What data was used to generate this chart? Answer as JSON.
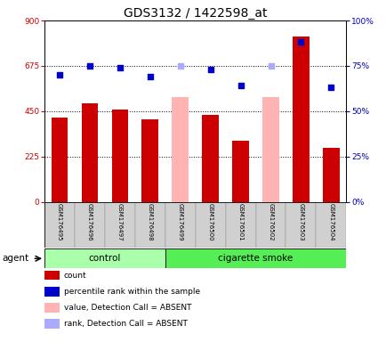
{
  "title": "GDS3132 / 1422598_at",
  "samples": [
    "GSM176495",
    "GSM176496",
    "GSM176497",
    "GSM176498",
    "GSM176499",
    "GSM176500",
    "GSM176501",
    "GSM176502",
    "GSM176503",
    "GSM176504"
  ],
  "count_present": [
    420,
    490,
    460,
    410,
    null,
    430,
    305,
    null,
    820,
    270
  ],
  "count_absent": [
    null,
    null,
    null,
    null,
    520,
    null,
    null,
    520,
    null,
    null
  ],
  "rank_present_pct": [
    70,
    75,
    74,
    69,
    null,
    73,
    64,
    null,
    88,
    63
  ],
  "rank_absent_pct": [
    null,
    null,
    null,
    null,
    75,
    null,
    null,
    75,
    null,
    null
  ],
  "n_control": 4,
  "ylim_left": [
    0,
    900
  ],
  "ylim_right": [
    0,
    100
  ],
  "yticks_left": [
    0,
    225,
    450,
    675,
    900
  ],
  "yticks_right": [
    0,
    25,
    50,
    75,
    100
  ],
  "bar_color_present": "#cc0000",
  "bar_color_absent": "#ffb3b3",
  "dot_color_present": "#0000cc",
  "dot_color_absent": "#aaaaff",
  "control_bg": "#aaffaa",
  "smoke_bg": "#55ee55",
  "title_fontsize": 10,
  "tick_fontsize": 6.5,
  "legend_items": [
    {
      "label": "count",
      "color": "#cc0000"
    },
    {
      "label": "percentile rank within the sample",
      "color": "#0000cc"
    },
    {
      "label": "value, Detection Call = ABSENT",
      "color": "#ffb3b3"
    },
    {
      "label": "rank, Detection Call = ABSENT",
      "color": "#aaaaff"
    }
  ]
}
